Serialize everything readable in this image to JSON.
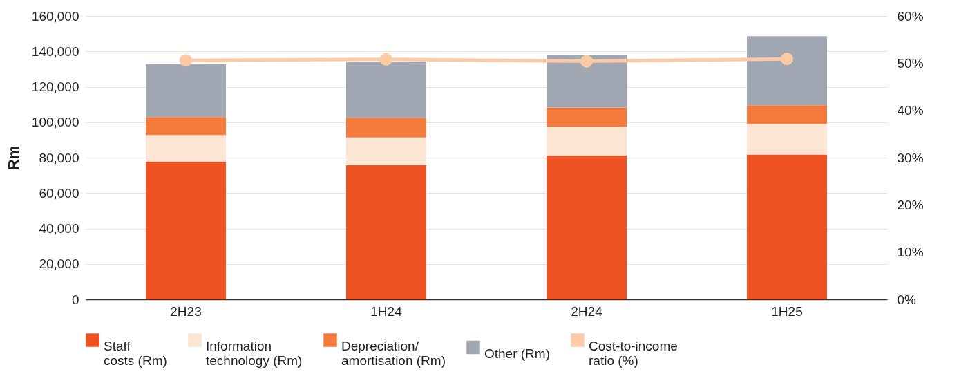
{
  "chart_data": {
    "type": "bar",
    "stacked": true,
    "ylabel": "Rm",
    "categories": [
      "2H23",
      "1H24",
      "2H24",
      "1H25"
    ],
    "series": [
      {
        "name": "Staff costs (Rm)",
        "color": "#f05323",
        "values": [
          77800,
          75800,
          81200,
          81800
        ]
      },
      {
        "name": "Information technology (Rm)",
        "color": "#fde5d4",
        "values": [
          15000,
          15600,
          16300,
          17200
        ]
      },
      {
        "name": "Depreciation/amortisation (Rm)",
        "color": "#f47b3b",
        "values": [
          10100,
          11100,
          10800,
          10600
        ]
      },
      {
        "name": "Other (Rm)",
        "color": "#a2a8b3",
        "values": [
          29900,
          31500,
          29500,
          39000
        ]
      },
      {
        "name": "Cost-to-income ratio (%)",
        "type": "line",
        "axis": "y2",
        "color": "#fccaa5",
        "values": [
          50.6,
          50.8,
          50.4,
          50.9
        ]
      }
    ],
    "ylim": [
      0,
      160000
    ],
    "yticks": [
      {
        "value": 0,
        "label": "0"
      },
      {
        "value": 20000,
        "label": "20,000"
      },
      {
        "value": 40000,
        "label": "40,000"
      },
      {
        "value": 60000,
        "label": "60,000"
      },
      {
        "value": 80000,
        "label": "80,000"
      },
      {
        "value": 100000,
        "label": "100,000"
      },
      {
        "value": 120000,
        "label": "120,000"
      },
      {
        "value": 140000,
        "label": "140,000"
      },
      {
        "value": 160000,
        "label": "160,000"
      }
    ],
    "y2lim": [
      0,
      60
    ],
    "y2ticks": [
      {
        "value": 0,
        "label": "0%"
      },
      {
        "value": 10,
        "label": "10%"
      },
      {
        "value": 20,
        "label": "20%"
      },
      {
        "value": 30,
        "label": "30%"
      },
      {
        "value": 40,
        "label": "40%"
      },
      {
        "value": 50,
        "label": "50%"
      },
      {
        "value": 60,
        "label": "60%"
      }
    ],
    "grid": "y",
    "legend": "bottom",
    "marker": "circle",
    "line_style": "solid"
  }
}
